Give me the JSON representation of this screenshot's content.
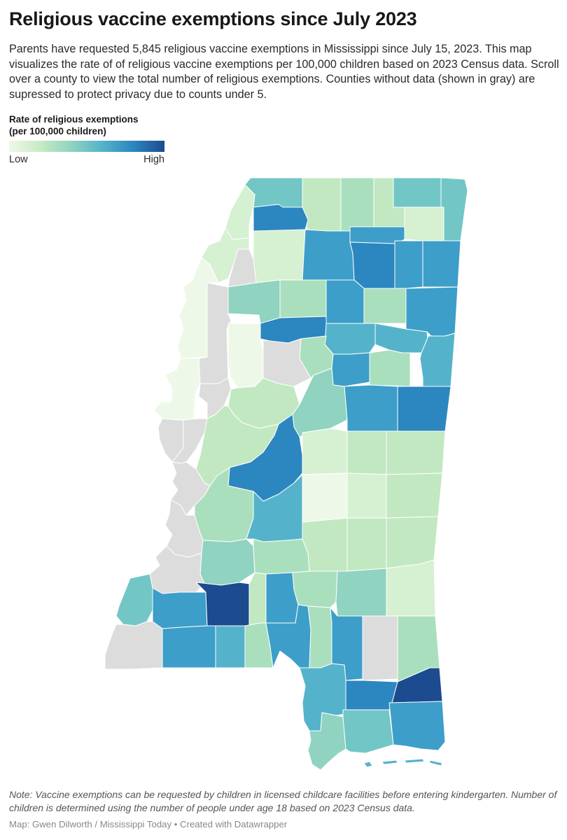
{
  "header": {
    "title": "Religious vaccine exemptions since July 2023",
    "description": "Parents have requested 5,845 religious vaccine exemptions in Mississippi since July 15, 2023. This map visualizes the rate of of religious vaccine exemptions per 100,000 children based on 2023 Census data. Scroll over a county to view the total number of religious exemptions. Counties without data (shown in gray) are supressed to protect privacy due to counts under 5."
  },
  "legend": {
    "title_line1": "Rate of religious exemptions",
    "title_line2": "(per 100,000 children)",
    "low_label": "Low",
    "high_label": "High"
  },
  "colors": {
    "suppressed": "#dcdcdc",
    "scale": [
      "#eef8e8",
      "#d6f0d2",
      "#c2e8c2",
      "#aadfbd",
      "#8fd3c0",
      "#72c6c6",
      "#54b3cb",
      "#3d9ec9",
      "#2c86c0",
      "#1c4b8f"
    ],
    "border": "#ffffff"
  },
  "footer": {
    "note": "Note: Vaccine exemptions can be requested by children in licensed childcare facilities before entering kindergarten. Number of children is determined using the number of people under age 18 based on 2023 Census data.",
    "credit": "Map: Gwen Dilworth / Mississippi Today • Created with Datawrapper"
  }
}
